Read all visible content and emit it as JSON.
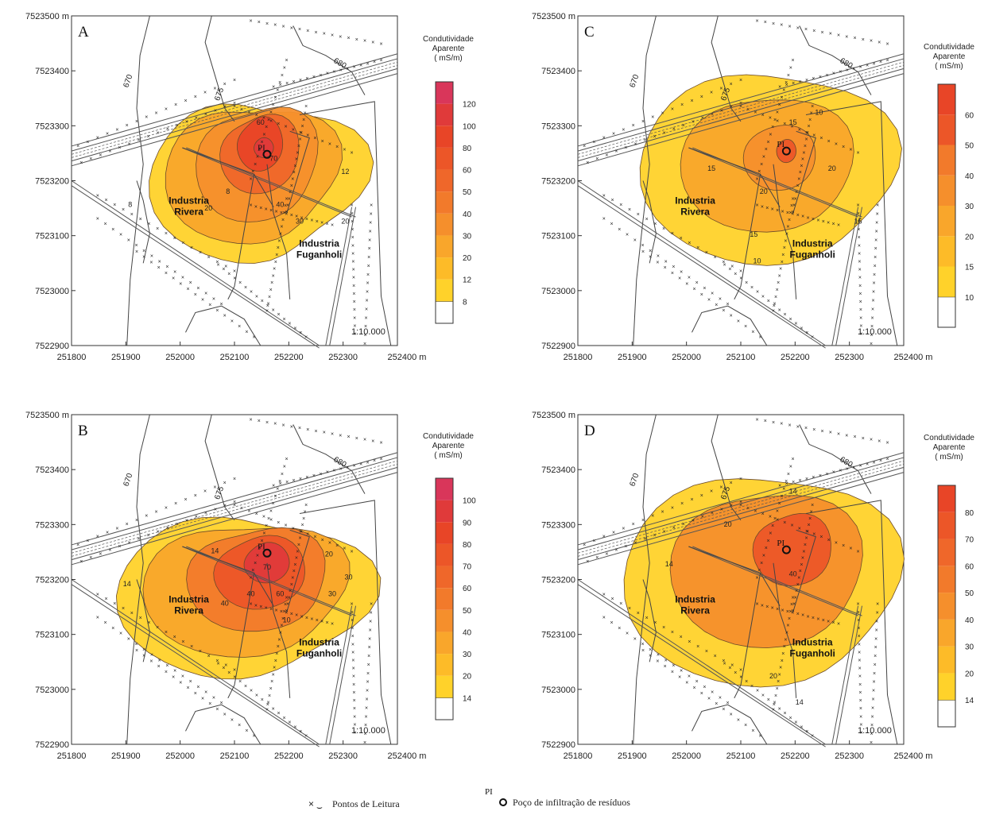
{
  "panels": [
    {
      "id": "A",
      "legend": {
        "title": [
          "Condutividade",
          "Aparente",
          "( mS/m)"
        ],
        "levels": [
          "8",
          "12",
          "20",
          "30",
          "40",
          "50",
          "60",
          "80",
          "100",
          "120"
        ],
        "colors": [
          "#ffd22a",
          "#fdbb28",
          "#f9a62b",
          "#f58f2c",
          "#f27a2b",
          "#ef672a",
          "#ec5628",
          "#e84527",
          "#e03a3a",
          "#d9365a"
        ]
      },
      "contour_labels": [
        "60",
        "70",
        "12",
        "8",
        "20",
        "40",
        "30",
        "20",
        "8"
      ],
      "peak_levels": 6
    },
    {
      "id": "B",
      "legend": {
        "title": [
          "Condutividade",
          "Aparente",
          "( mS/m)"
        ],
        "levels": [
          "14",
          "20",
          "30",
          "40",
          "50",
          "60",
          "70",
          "80",
          "90",
          "100"
        ],
        "colors": [
          "#ffd22a",
          "#fdbb28",
          "#f9a62b",
          "#f58f2c",
          "#f27a2b",
          "#ef672a",
          "#ec5628",
          "#e84527",
          "#e03a3a",
          "#d9365a"
        ]
      },
      "contour_labels": [
        "14",
        "70",
        "20",
        "30",
        "14",
        "40",
        "10",
        "30",
        "40",
        "60"
      ],
      "peak_levels": 5
    },
    {
      "id": "C",
      "legend": {
        "title": [
          "Condutividade",
          "Aparente",
          "( mS/m)"
        ],
        "levels": [
          "10",
          "15",
          "20",
          "30",
          "40",
          "50",
          "60"
        ],
        "colors": [
          "#ffd22a",
          "#fdbb28",
          "#f9a62b",
          "#f58f2c",
          "#f27a2b",
          "#ec5628",
          "#e84527"
        ]
      },
      "contour_labels": [
        "10",
        "15",
        "15",
        "20",
        "20",
        "15",
        "15",
        "10"
      ],
      "peak_levels": 4
    },
    {
      "id": "D",
      "legend": {
        "title": [
          "Condutividade",
          "Aparente",
          "( mS/m)"
        ],
        "levels": [
          "14",
          "20",
          "30",
          "40",
          "50",
          "60",
          "70",
          "80"
        ],
        "colors": [
          "#ffd22a",
          "#fdbb28",
          "#f9a62b",
          "#f58f2c",
          "#f27a2b",
          "#ef672a",
          "#ec5628",
          "#e84527"
        ]
      },
      "contour_labels": [
        "14",
        "20",
        "14",
        "40",
        "20",
        "14"
      ],
      "peak_levels": 3
    }
  ],
  "map": {
    "y_ticks": [
      "7523500 m",
      "7523400",
      "7523300",
      "7523200",
      "7523100",
      "7523000",
      "7522900"
    ],
    "x_ticks": [
      "251800",
      "251900",
      "252000",
      "252100",
      "252200",
      "252300",
      "252400 m"
    ],
    "topo_labels": [
      "670",
      "675",
      "680"
    ],
    "industry_rivera": [
      "Industria",
      "Rivera"
    ],
    "industry_fuganholi": [
      "Industria",
      "Fuganholi"
    ],
    "well_label": "PI",
    "scale": "1:10.000"
  },
  "footer": {
    "reading_points": "Pontos de Leitura",
    "well_label": "PI",
    "well_text": "Poço de infiltração de resíduos"
  }
}
